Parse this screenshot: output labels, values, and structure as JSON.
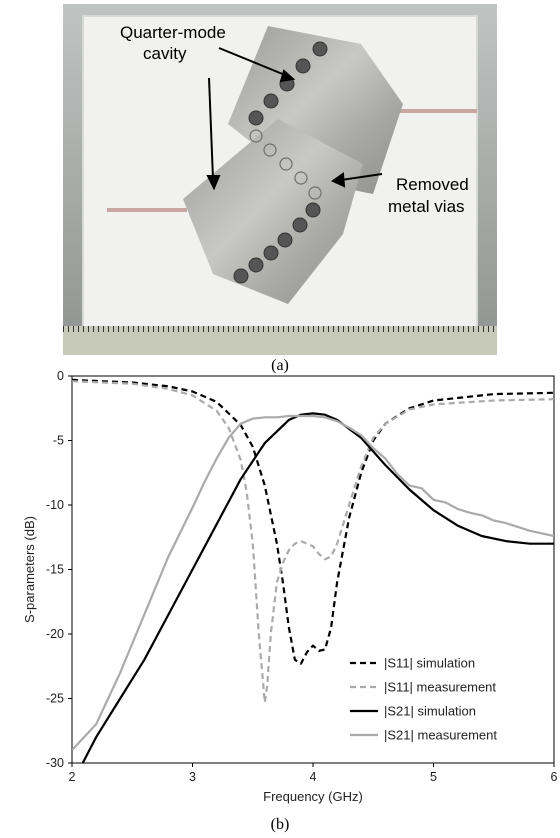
{
  "photo": {
    "annotations": {
      "quarter_mode_line1": "Quarter-mode",
      "quarter_mode_line2": "cavity",
      "removed_vias_line1": "Removed",
      "removed_vias_line2": "metal vias"
    },
    "caption": "(a)"
  },
  "chart_caption": "(b)",
  "chart_data": {
    "type": "line",
    "xlabel": "Frequency (GHz)",
    "ylabel": "S-parameters (dB)",
    "xlim": [
      2,
      6
    ],
    "ylim": [
      -30,
      0
    ],
    "xticks": [
      2,
      3,
      4,
      5,
      6
    ],
    "yticks": [
      0,
      -5,
      -10,
      -15,
      -20,
      -25,
      -30
    ],
    "grid": false,
    "legend_position": "lower-right",
    "series": [
      {
        "name": "|S11| simulation",
        "color": "#000000",
        "style": "dashed",
        "x": [
          2.0,
          2.5,
          2.8,
          3.0,
          3.2,
          3.4,
          3.5,
          3.6,
          3.7,
          3.75,
          3.8,
          3.85,
          3.9,
          3.95,
          4.0,
          4.05,
          4.1,
          4.15,
          4.2,
          4.3,
          4.4,
          4.5,
          4.6,
          4.8,
          5.0,
          5.5,
          6.0
        ],
        "y": [
          -0.3,
          -0.5,
          -0.8,
          -1.2,
          -2.0,
          -3.8,
          -5.5,
          -8.5,
          -13.0,
          -16.0,
          -19.5,
          -22.0,
          -22.3,
          -21.4,
          -20.9,
          -21.3,
          -21.2,
          -19.5,
          -16.0,
          -11.0,
          -7.5,
          -5.0,
          -3.7,
          -2.5,
          -1.9,
          -1.4,
          -1.3
        ]
      },
      {
        "name": "|S11| measurement",
        "color": "#aaaaaa",
        "style": "dashed",
        "x": [
          2.0,
          2.5,
          2.8,
          3.0,
          3.2,
          3.3,
          3.4,
          3.45,
          3.5,
          3.55,
          3.6,
          3.62,
          3.65,
          3.7,
          3.75,
          3.8,
          3.85,
          3.9,
          3.95,
          4.0,
          4.05,
          4.1,
          4.15,
          4.2,
          4.3,
          4.4,
          4.5,
          4.6,
          4.8,
          5.0,
          5.5,
          6.0
        ],
        "y": [
          -0.4,
          -0.6,
          -1.0,
          -1.5,
          -2.7,
          -4.0,
          -6.5,
          -9.0,
          -13.0,
          -20.0,
          -25.3,
          -24.0,
          -20.0,
          -16.0,
          -14.5,
          -13.5,
          -13.0,
          -12.8,
          -13.0,
          -13.2,
          -13.8,
          -14.2,
          -14.0,
          -13.0,
          -10.0,
          -7.0,
          -4.8,
          -3.7,
          -2.6,
          -2.2,
          -1.9,
          -1.8
        ]
      },
      {
        "name": "|S21| simulation",
        "color": "#000000",
        "style": "solid",
        "x": [
          2.0,
          2.1,
          2.2,
          2.4,
          2.6,
          2.8,
          3.0,
          3.2,
          3.4,
          3.6,
          3.8,
          3.9,
          4.0,
          4.1,
          4.2,
          4.4,
          4.6,
          4.8,
          5.0,
          5.2,
          5.4,
          5.6,
          5.8,
          6.0
        ],
        "y": [
          -31.5,
          -29.8,
          -28.0,
          -25.0,
          -22.0,
          -18.5,
          -15.0,
          -11.5,
          -8.0,
          -5.2,
          -3.4,
          -3.0,
          -2.9,
          -3.0,
          -3.4,
          -4.8,
          -6.9,
          -8.8,
          -10.4,
          -11.6,
          -12.4,
          -12.8,
          -13.0,
          -13.0
        ]
      },
      {
        "name": "|S21| measurement",
        "color": "#aaaaaa",
        "style": "solid",
        "x": [
          2.0,
          2.2,
          2.4,
          2.6,
          2.8,
          3.0,
          3.1,
          3.2,
          3.3,
          3.4,
          3.5,
          3.6,
          3.7,
          3.8,
          3.9,
          4.0,
          4.1,
          4.2,
          4.3,
          4.4,
          4.5,
          4.6,
          4.7,
          4.8,
          4.9,
          5.0,
          5.1,
          5.2,
          5.3,
          5.4,
          5.5,
          5.6,
          5.7,
          5.8,
          5.9,
          6.0
        ],
        "y": [
          -29.0,
          -27.0,
          -23.0,
          -18.5,
          -14.0,
          -10.2,
          -8.2,
          -6.4,
          -4.8,
          -3.7,
          -3.3,
          -3.2,
          -3.2,
          -3.1,
          -3.1,
          -3.1,
          -3.2,
          -3.5,
          -4.0,
          -4.6,
          -5.6,
          -6.4,
          -7.6,
          -8.5,
          -8.7,
          -9.6,
          -9.8,
          -10.3,
          -10.6,
          -10.8,
          -11.2,
          -11.4,
          -11.7,
          -12.0,
          -12.2,
          -12.4
        ]
      }
    ]
  }
}
